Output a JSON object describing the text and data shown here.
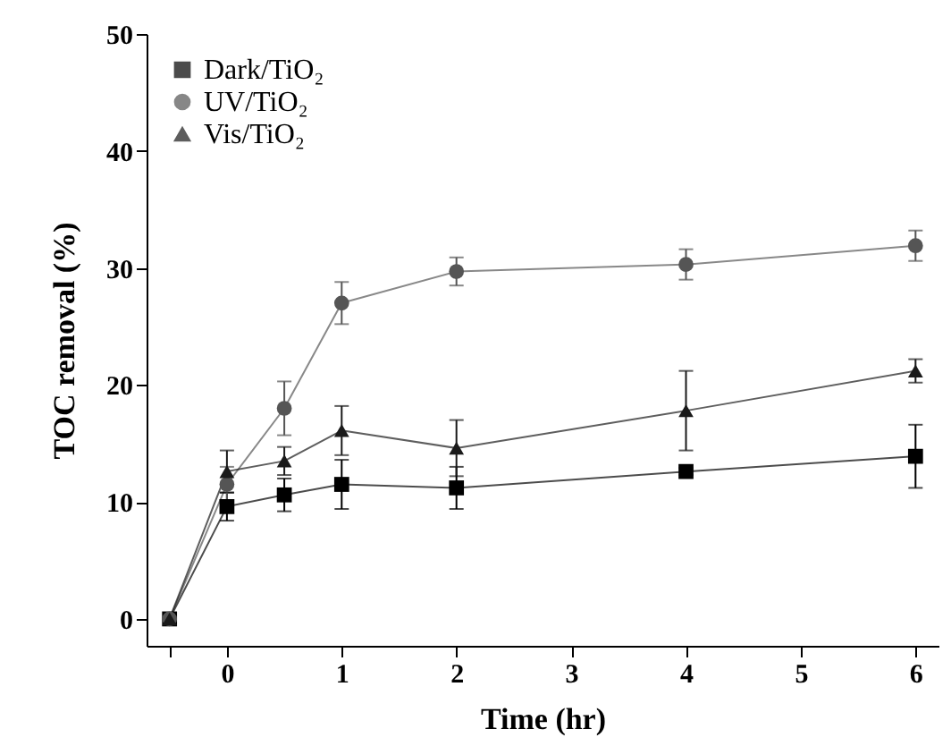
{
  "chart_data": {
    "type": "line",
    "xlabel": "Time (hr)",
    "ylabel": "TOC removal (%)",
    "x": [
      -0.5,
      0,
      0.5,
      1,
      2,
      4,
      6
    ],
    "series": [
      {
        "name": "Dark/TiO₂",
        "color": "#000000",
        "marker": "square",
        "values": [
          0,
          9.6,
          10.6,
          11.5,
          11.2,
          12.6,
          13.9
        ],
        "errors": [
          null,
          1.2,
          1.4,
          2.1,
          1.8,
          0.3,
          2.7
        ]
      },
      {
        "name": "UV/TiO₂",
        "color": "#555555",
        "marker": "circle",
        "values": [
          0,
          11.5,
          18,
          27,
          29.7,
          30.3,
          31.9
        ],
        "errors": [
          null,
          1.5,
          2.3,
          1.8,
          1.2,
          1.3,
          1.3
        ]
      },
      {
        "name": "Vis/TiO₂",
        "color": "#1a1a1a",
        "marker": "triangle",
        "values": [
          0,
          12.6,
          13.5,
          16.1,
          14.6,
          17.8,
          21.2
        ],
        "errors": [
          null,
          1.8,
          1.2,
          2.1,
          2.4,
          3.4,
          1
        ]
      }
    ],
    "xlim": [
      -0.7,
      6.2
    ],
    "xticks": [
      {
        "value": -0.5,
        "label": null
      },
      0,
      1,
      2,
      3,
      4,
      5,
      6
    ],
    "ylim": [
      -2.3,
      50
    ],
    "yticks": [
      0,
      10,
      20,
      30,
      40,
      50
    ],
    "grid": false,
    "legend": "top left"
  }
}
